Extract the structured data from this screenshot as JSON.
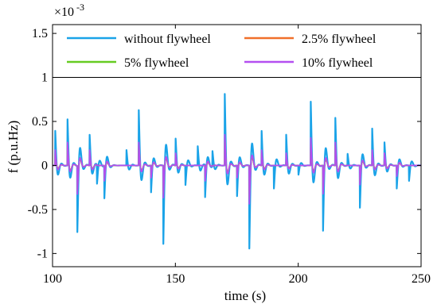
{
  "chart_data": {
    "type": "line",
    "title": "",
    "xlabel": "time (s)",
    "ylabel": "f (p.u.Hz)",
    "y_multiplier_label": "×10",
    "y_multiplier_exponent": "-3",
    "xlim": [
      100,
      250
    ],
    "ylim": [
      -1.15,
      1.6
    ],
    "x_ticks": [
      100,
      150,
      200,
      250
    ],
    "x_tick_labels": [
      "100",
      "150",
      "200",
      "250"
    ],
    "y_ticks": [
      -1,
      -0.5,
      0,
      0.5,
      1,
      1.5
    ],
    "y_tick_labels": [
      "-1",
      "-0.5",
      "0",
      "0.5",
      "1",
      "1.5"
    ],
    "grid": false,
    "legend_placement": "top (inside, boxed, two columns)",
    "legend_divider_y": 1.0,
    "series": [
      {
        "name": "without flywheel",
        "color": "#1aa3e8",
        "events": [
          {
            "t": 101,
            "a": 0.45
          },
          {
            "t": 106,
            "a": 0.6
          },
          {
            "t": 110,
            "a": -0.86
          },
          {
            "t": 115,
            "a": 0.4
          },
          {
            "t": 118,
            "a": -0.25
          },
          {
            "t": 121,
            "a": -0.42
          },
          {
            "t": 130,
            "a": 0.2
          },
          {
            "t": 135,
            "a": 0.72
          },
          {
            "t": 140,
            "a": -0.35
          },
          {
            "t": 145,
            "a": -1.02
          },
          {
            "t": 150,
            "a": 0.35
          },
          {
            "t": 154,
            "a": -0.25
          },
          {
            "t": 159,
            "a": 0.25
          },
          {
            "t": 162,
            "a": -0.42
          },
          {
            "t": 165,
            "a": 0.2
          },
          {
            "t": 170,
            "a": 0.93
          },
          {
            "t": 175,
            "a": -0.4
          },
          {
            "t": 180,
            "a": -1.08
          },
          {
            "t": 185,
            "a": 0.45
          },
          {
            "t": 190,
            "a": -0.3
          },
          {
            "t": 195,
            "a": 0.4
          },
          {
            "t": 200,
            "a": -0.12
          },
          {
            "t": 205,
            "a": 0.83
          },
          {
            "t": 210,
            "a": -0.85
          },
          {
            "t": 215,
            "a": 0.62
          },
          {
            "t": 220,
            "a": 0.15
          },
          {
            "t": 225,
            "a": -0.55
          },
          {
            "t": 230,
            "a": 0.48
          },
          {
            "t": 235,
            "a": 0.3
          },
          {
            "t": 240,
            "a": -0.3
          },
          {
            "t": 245,
            "a": -0.2
          }
        ]
      },
      {
        "name": "2.5% flywheel",
        "color": "#f0702a",
        "events": [
          {
            "t": 101,
            "a": 0.15
          },
          {
            "t": 106,
            "a": 0.25
          },
          {
            "t": 110,
            "a": -0.3
          },
          {
            "t": 115,
            "a": 0.15
          },
          {
            "t": 121,
            "a": -0.15
          },
          {
            "t": 135,
            "a": 0.25
          },
          {
            "t": 140,
            "a": -0.12
          },
          {
            "t": 145,
            "a": -0.35
          },
          {
            "t": 150,
            "a": 0.12
          },
          {
            "t": 162,
            "a": -0.15
          },
          {
            "t": 170,
            "a": 0.35
          },
          {
            "t": 175,
            "a": -0.12
          },
          {
            "t": 180,
            "a": -0.4
          },
          {
            "t": 185,
            "a": 0.15
          },
          {
            "t": 195,
            "a": 0.12
          },
          {
            "t": 205,
            "a": 0.3
          },
          {
            "t": 210,
            "a": -0.3
          },
          {
            "t": 215,
            "a": 0.25
          },
          {
            "t": 225,
            "a": -0.2
          },
          {
            "t": 230,
            "a": 0.15
          },
          {
            "t": 235,
            "a": 0.12
          },
          {
            "t": 240,
            "a": -0.1
          }
        ]
      },
      {
        "name": "5% flywheel",
        "color": "#66cc22",
        "events": [
          {
            "t": 101,
            "a": 0.17
          },
          {
            "t": 106,
            "a": 0.27
          },
          {
            "t": 110,
            "a": -0.33
          },
          {
            "t": 115,
            "a": 0.17
          },
          {
            "t": 121,
            "a": -0.17
          },
          {
            "t": 135,
            "a": 0.27
          },
          {
            "t": 140,
            "a": -0.14
          },
          {
            "t": 145,
            "a": -0.38
          },
          {
            "t": 150,
            "a": 0.14
          },
          {
            "t": 162,
            "a": -0.17
          },
          {
            "t": 170,
            "a": 0.37
          },
          {
            "t": 175,
            "a": -0.14
          },
          {
            "t": 180,
            "a": -0.44
          },
          {
            "t": 185,
            "a": 0.17
          },
          {
            "t": 195,
            "a": 0.14
          },
          {
            "t": 205,
            "a": 0.32
          },
          {
            "t": 210,
            "a": -0.33
          },
          {
            "t": 215,
            "a": 0.27
          },
          {
            "t": 225,
            "a": -0.22
          },
          {
            "t": 230,
            "a": 0.17
          },
          {
            "t": 235,
            "a": 0.14
          },
          {
            "t": 240,
            "a": -0.12
          }
        ]
      },
      {
        "name": "10% flywheel",
        "color": "#b44ff0",
        "events": [
          {
            "t": 101,
            "a": 0.2
          },
          {
            "t": 106,
            "a": 0.3
          },
          {
            "t": 110,
            "a": -0.37
          },
          {
            "t": 115,
            "a": 0.2
          },
          {
            "t": 121,
            "a": -0.2
          },
          {
            "t": 135,
            "a": 0.3
          },
          {
            "t": 140,
            "a": -0.16
          },
          {
            "t": 145,
            "a": -0.42
          },
          {
            "t": 150,
            "a": 0.16
          },
          {
            "t": 162,
            "a": -0.2
          },
          {
            "t": 170,
            "a": 0.4
          },
          {
            "t": 175,
            "a": -0.16
          },
          {
            "t": 180,
            "a": -0.5
          },
          {
            "t": 185,
            "a": 0.2
          },
          {
            "t": 195,
            "a": 0.16
          },
          {
            "t": 205,
            "a": 0.36
          },
          {
            "t": 210,
            "a": -0.37
          },
          {
            "t": 215,
            "a": 0.3
          },
          {
            "t": 225,
            "a": -0.25
          },
          {
            "t": 230,
            "a": 0.2
          },
          {
            "t": 235,
            "a": 0.16
          },
          {
            "t": 240,
            "a": -0.14
          }
        ]
      }
    ]
  }
}
